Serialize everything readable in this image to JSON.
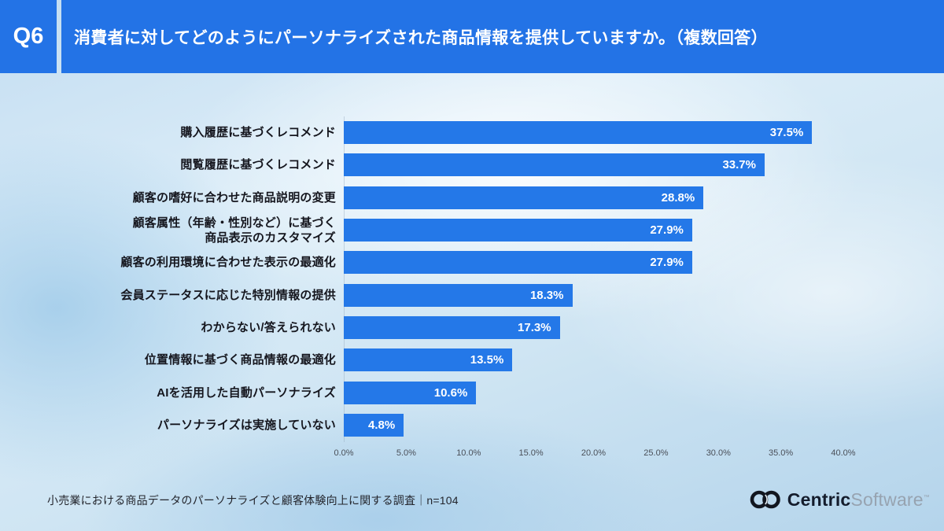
{
  "header": {
    "question_label": "Q6",
    "title": "消費者に対してどのようにパーソナライズされた商品情報を提供していますか。（複数回答）"
  },
  "chart_data": {
    "type": "bar",
    "orientation": "horizontal",
    "title": "",
    "xlabel": "",
    "ylabel": "",
    "categories": [
      "購入履歴に基づくレコメンド",
      "閲覧履歴に基づくレコメンド",
      "顧客の嗜好に合わせた商品説明の変更",
      "顧客属性（年齢・性別など）に基づく\n商品表示のカスタマイズ",
      "顧客の利用環境に合わせた表示の最適化",
      "会員ステータスに応じた特別情報の提供",
      "わからない/答えられない",
      "位置情報に基づく商品情報の最適化",
      "AIを活用した自動パーソナライズ",
      "パーソナライズは実施していない"
    ],
    "values": [
      37.5,
      33.7,
      28.8,
      27.9,
      27.9,
      18.3,
      17.3,
      13.5,
      10.6,
      4.8
    ],
    "value_labels": [
      "37.5%",
      "33.7%",
      "28.8%",
      "27.9%",
      "27.9%",
      "18.3%",
      "17.3%",
      "13.5%",
      "10.6%",
      "4.8%"
    ],
    "xlim": [
      0,
      40
    ],
    "x_ticks": [
      "0.0%",
      "5.0%",
      "10.0%",
      "15.0%",
      "20.0%",
      "25.0%",
      "30.0%",
      "35.0%",
      "40.0%"
    ],
    "grid": false,
    "legend": false,
    "bar_color": "#2478e8"
  },
  "footer": {
    "source_note": "小売業における商品データのパーソナライズと顧客体験向上に関する調査｜n=104",
    "logo": {
      "brand_primary": "Centric",
      "brand_secondary": "Software",
      "trademark": "™"
    }
  },
  "colors": {
    "header_blue": "#2373e6",
    "bar_blue": "#2478e8"
  }
}
